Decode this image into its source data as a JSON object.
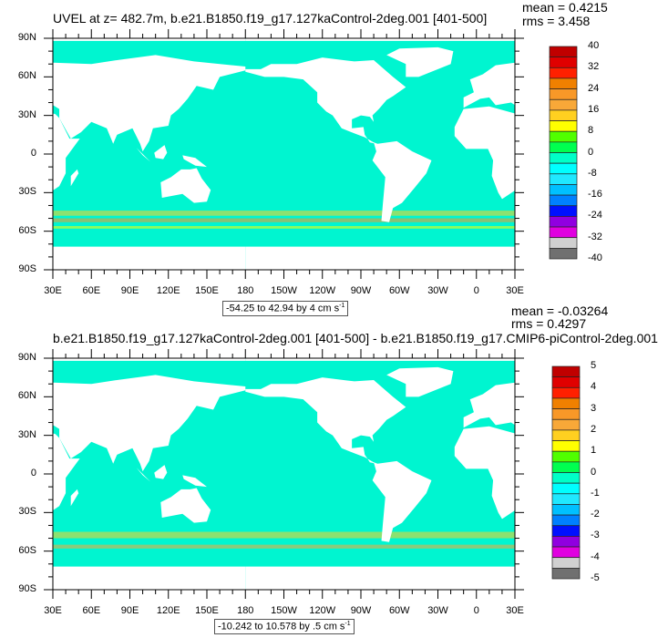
{
  "panels": [
    {
      "title": "UVEL at z= 482.7m, b.e21.B1850.f19_g17.127kaControl-2deg.001 [401-500]",
      "mean": "mean = 0.4215",
      "rms": "rms = 3.458",
      "subtitle": "-54.25 to 42.94 by 4 cm s",
      "subtitle_sup": "-1",
      "colorbar_labels": [
        "40",
        "32",
        "24",
        "16",
        "8",
        "0",
        "-8",
        "-16",
        "-24",
        "-32",
        "-40"
      ]
    },
    {
      "title": "b.e21.B1850.f19_g17.127kaControl-2deg.001 [401-500] - b.e21.B1850.f19_g17.CMIP6-piControl-2deg.001",
      "mean": "mean = -0.03264",
      "rms": "rms = 0.4297",
      "subtitle": "-10.242 to 10.578 by .5 cm s",
      "subtitle_sup": "-1",
      "colorbar_labels": [
        "5",
        "4",
        "3",
        "2",
        "1",
        "0",
        "-1",
        "-2",
        "-3",
        "-4",
        "-5"
      ]
    }
  ],
  "lat_labels": [
    "90N",
    "60N",
    "30N",
    "0",
    "30S",
    "60S",
    "90S"
  ],
  "lon_labels": [
    "30E",
    "60E",
    "90E",
    "120E",
    "150E",
    "180",
    "150W",
    "120W",
    "90W",
    "60W",
    "30W",
    "0",
    "30E"
  ],
  "colors": [
    "#c00000",
    "#e00000",
    "#ff2000",
    "#f08000",
    "#f89828",
    "#f8a838",
    "#ffd020",
    "#ffff00",
    "#50ff00",
    "#00ff50",
    "#00ffc8",
    "#00ffff",
    "#20e8ff",
    "#00c0ff",
    "#0080ff",
    "#0010ff",
    "#9000e0",
    "#e000e0",
    "#d0d0d0",
    "#707070"
  ]
}
